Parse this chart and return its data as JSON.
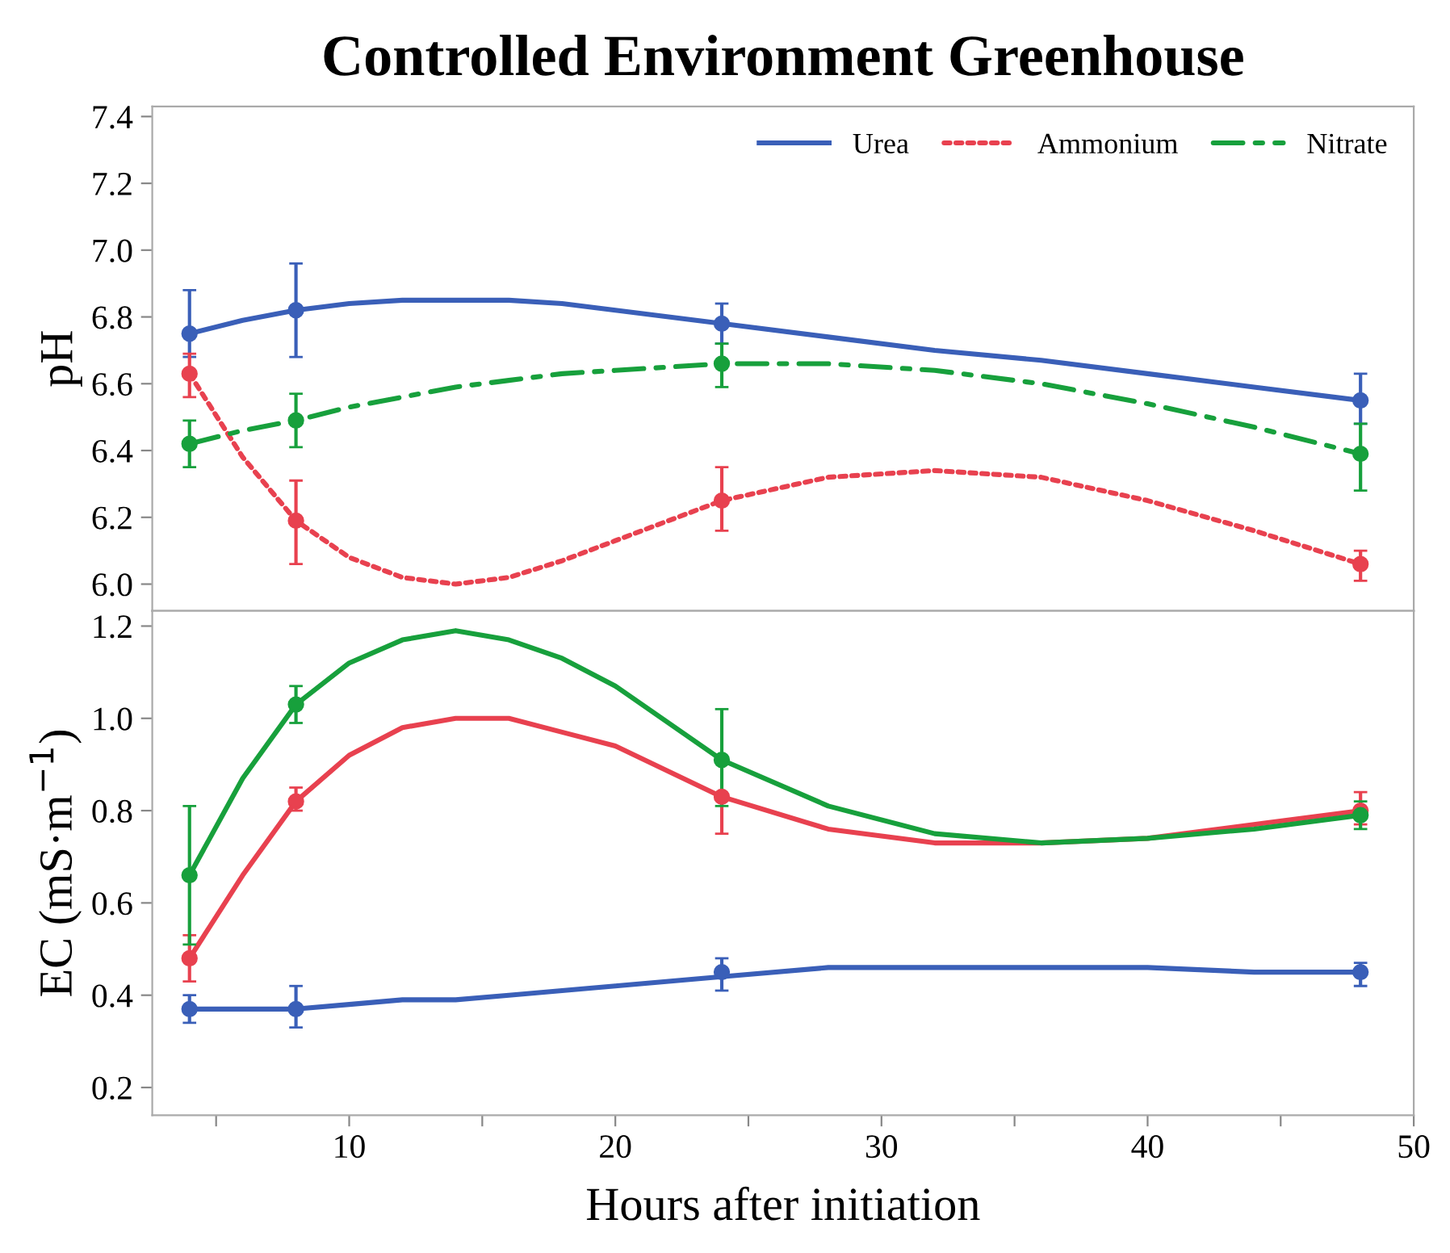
{
  "chart_data": [
    {
      "type": "line",
      "title": "Controlled Environment Greenhouse",
      "ylabel": "pH",
      "legend": "top right",
      "tick_labels": "y",
      "xlim": [
        2.6,
        50
      ],
      "ylim": [
        5.92,
        7.43
      ],
      "yticks": [
        {
          "value": 6,
          "label": "6.0"
        },
        6.2,
        6.4,
        6.6,
        6.8,
        {
          "value": 7,
          "label": "7.0"
        },
        7.2,
        7.4
      ],
      "series": [
        {
          "name": "Urea",
          "line_style": "solid",
          "marker": "none",
          "color": "#3a5fb8",
          "x": [
            4,
            6,
            8,
            10,
            12,
            14,
            16,
            18,
            20,
            24,
            28,
            32,
            36,
            40,
            44,
            48
          ],
          "values": [
            6.75,
            6.79,
            6.82,
            6.84,
            6.85,
            6.85,
            6.85,
            6.84,
            6.82,
            6.78,
            6.74,
            6.7,
            6.67,
            6.63,
            6.59,
            6.55
          ]
        },
        {
          "name": "Ammonium",
          "line_style": "dotted",
          "marker": "none",
          "color": "#e8414f",
          "x": [
            4,
            6,
            8,
            10,
            12,
            14,
            16,
            18,
            20,
            24,
            28,
            32,
            36,
            40,
            44,
            48
          ],
          "values": [
            6.63,
            6.38,
            6.19,
            6.08,
            6.02,
            6.0,
            6.02,
            6.07,
            6.13,
            6.25,
            6.32,
            6.34,
            6.32,
            6.25,
            6.16,
            6.06
          ]
        },
        {
          "name": "Nitrate",
          "line_style": "dashdot",
          "marker": "none",
          "color": "#17a03c",
          "x": [
            4,
            6,
            8,
            10,
            12,
            14,
            16,
            18,
            20,
            24,
            28,
            32,
            36,
            40,
            44,
            48
          ],
          "values": [
            6.42,
            6.46,
            6.49,
            6.53,
            6.56,
            6.59,
            6.61,
            6.63,
            6.64,
            6.66,
            6.66,
            6.64,
            6.6,
            6.54,
            6.47,
            6.39
          ]
        },
        {
          "type": "scatter",
          "marker": "circle",
          "color": "#3a5fb8",
          "x": [
            4,
            8,
            24,
            48
          ],
          "values": [
            6.75,
            6.82,
            6.78,
            6.55
          ],
          "errors": [
            [
              6.68,
              6.88
            ],
            [
              6.68,
              6.96
            ],
            [
              6.72,
              6.84
            ],
            [
              6.48,
              6.63
            ]
          ]
        },
        {
          "type": "scatter",
          "marker": "circle",
          "color": "#e8414f",
          "x": [
            4,
            8,
            24,
            48
          ],
          "values": [
            6.63,
            6.19,
            6.25,
            6.06
          ],
          "errors": [
            [
              6.56,
              6.69
            ],
            [
              6.06,
              6.31
            ],
            [
              6.16,
              6.35
            ],
            [
              6.01,
              6.1
            ]
          ]
        },
        {
          "type": "scatter",
          "marker": "circle",
          "color": "#17a03c",
          "x": [
            4,
            8,
            24,
            48
          ],
          "values": [
            6.42,
            6.49,
            6.66,
            6.39
          ],
          "errors": [
            [
              6.35,
              6.49
            ],
            [
              6.41,
              6.57
            ],
            [
              6.59,
              6.72
            ],
            [
              6.28,
              6.48
            ]
          ]
        }
      ]
    },
    {
      "type": "line",
      "xlabel": "Hours after initiation",
      "ylabel": "EC (mS·m$^{−1}$)",
      "xlim": [
        2.6,
        50
      ],
      "xticks": [
        {
          "value": 5,
          "label": null
        },
        10,
        {
          "value": 15,
          "label": null
        },
        20,
        {
          "value": 25,
          "label": null
        },
        30,
        {
          "value": 35,
          "label": null
        },
        40,
        {
          "value": 45,
          "label": null
        },
        50
      ],
      "ylim": [
        0.14,
        1.233
      ],
      "yticks": [
        0.2,
        0.4,
        0.6,
        0.8,
        {
          "value": 1,
          "label": "1.0"
        },
        1.2
      ],
      "series": [
        {
          "line_style": "solid",
          "marker": "none",
          "color": "#3a5fb8",
          "x": [
            4,
            6,
            8,
            10,
            12,
            14,
            16,
            18,
            20,
            24,
            28,
            32,
            36,
            40,
            44,
            48
          ],
          "values": [
            0.37,
            0.37,
            0.37,
            0.38,
            0.39,
            0.39,
            0.4,
            0.41,
            0.42,
            0.44,
            0.46,
            0.46,
            0.46,
            0.46,
            0.45,
            0.45
          ]
        },
        {
          "line_style": "solid",
          "marker": "none",
          "color": "#e8414f",
          "x": [
            4,
            6,
            8,
            10,
            12,
            14,
            16,
            18,
            20,
            24,
            28,
            32,
            36,
            40,
            44,
            48
          ],
          "values": [
            0.48,
            0.66,
            0.82,
            0.92,
            0.98,
            1.0,
            1.0,
            0.97,
            0.94,
            0.83,
            0.76,
            0.73,
            0.73,
            0.74,
            0.77,
            0.8
          ]
        },
        {
          "line_style": "solid",
          "marker": "none",
          "color": "#17a03c",
          "x": [
            4,
            6,
            8,
            10,
            12,
            14,
            16,
            18,
            20,
            24,
            28,
            32,
            36,
            40,
            44,
            48
          ],
          "values": [
            0.66,
            0.87,
            1.03,
            1.12,
            1.17,
            1.19,
            1.17,
            1.13,
            1.07,
            0.91,
            0.81,
            0.75,
            0.73,
            0.74,
            0.76,
            0.79
          ]
        },
        {
          "type": "scatter",
          "marker": "circle",
          "color": "#3a5fb8",
          "x": [
            4,
            8,
            24,
            48
          ],
          "values": [
            0.37,
            0.37,
            0.45,
            0.45
          ],
          "errors": [
            [
              0.34,
              0.4
            ],
            [
              0.33,
              0.42
            ],
            [
              0.41,
              0.48
            ],
            [
              0.42,
              0.47
            ]
          ]
        },
        {
          "type": "scatter",
          "marker": "circle",
          "color": "#e8414f",
          "x": [
            4,
            8,
            24,
            48
          ],
          "values": [
            0.48,
            0.82,
            0.83,
            0.8
          ],
          "errors": [
            [
              0.43,
              0.53
            ],
            [
              0.8,
              0.85
            ],
            [
              0.75,
              0.83
            ],
            [
              0.77,
              0.84
            ]
          ]
        },
        {
          "type": "scatter",
          "marker": "circle",
          "color": "#17a03c",
          "x": [
            4,
            8,
            24,
            48
          ],
          "values": [
            0.66,
            1.03,
            0.91,
            0.79
          ],
          "errors": [
            [
              0.51,
              0.81
            ],
            [
              0.99,
              1.07
            ],
            [
              0.81,
              1.02
            ],
            [
              0.76,
              0.82
            ]
          ]
        }
      ]
    }
  ]
}
